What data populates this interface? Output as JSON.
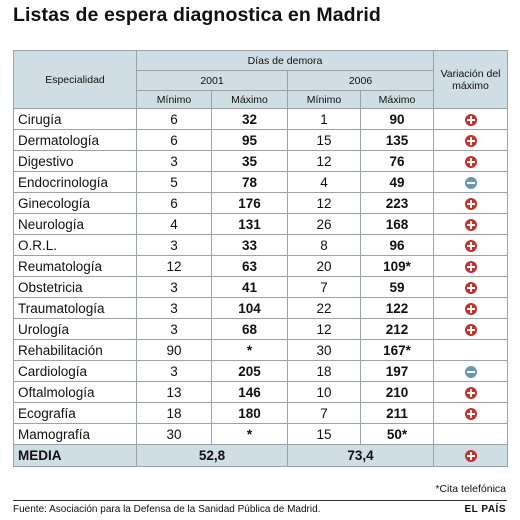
{
  "title": "Listas de espera diagnostica en Madrid",
  "chart_data": {
    "type": "table",
    "header": {
      "specialty": "Especialidad",
      "delay": "Días de demora",
      "year1": "2001",
      "year2": "2006",
      "min": "Mínimo",
      "max": "Máximo",
      "variation": "Variación del máximo"
    },
    "rows": [
      {
        "name": "Cirugía",
        "min2001": "6",
        "max2001": "32",
        "min2006": "1",
        "max2006": "90",
        "variation": "up"
      },
      {
        "name": "Dermatología",
        "min2001": "6",
        "max2001": "95",
        "min2006": "15",
        "max2006": "135",
        "variation": "up"
      },
      {
        "name": "Digestivo",
        "min2001": "3",
        "max2001": "35",
        "min2006": "12",
        "max2006": "76",
        "variation": "up"
      },
      {
        "name": "Endocrinología",
        "min2001": "5",
        "max2001": "78",
        "min2006": "4",
        "max2006": "49",
        "variation": "down"
      },
      {
        "name": "Ginecología",
        "min2001": "6",
        "max2001": "176",
        "min2006": "12",
        "max2006": "223",
        "variation": "up"
      },
      {
        "name": "Neurología",
        "min2001": "4",
        "max2001": "131",
        "min2006": "26",
        "max2006": "168",
        "variation": "up"
      },
      {
        "name": "O.R.L.",
        "min2001": "3",
        "max2001": "33",
        "min2006": "8",
        "max2006": "96",
        "variation": "up"
      },
      {
        "name": "Reumatología",
        "min2001": "12",
        "max2001": "63",
        "min2006": "20",
        "max2006": "109*",
        "variation": "up"
      },
      {
        "name": "Obstetricia",
        "min2001": "3",
        "max2001": "41",
        "min2006": "7",
        "max2006": "59",
        "variation": "up"
      },
      {
        "name": "Traumatología",
        "min2001": "3",
        "max2001": "104",
        "min2006": "22",
        "max2006": "122",
        "variation": "up"
      },
      {
        "name": "Urología",
        "min2001": "3",
        "max2001": "68",
        "min2006": "12",
        "max2006": "212",
        "variation": "up"
      },
      {
        "name": "Rehabilitación",
        "min2001": "90",
        "max2001": "*",
        "min2006": "30",
        "max2006": "167*",
        "variation": ""
      },
      {
        "name": "Cardiología",
        "min2001": "3",
        "max2001": "205",
        "min2006": "18",
        "max2006": "197",
        "variation": "down"
      },
      {
        "name": "Oftalmología",
        "min2001": "13",
        "max2001": "146",
        "min2006": "10",
        "max2006": "210",
        "variation": "up"
      },
      {
        "name": "Ecografía",
        "min2001": "18",
        "max2001": "180",
        "min2006": "7",
        "max2006": "211",
        "variation": "up"
      },
      {
        "name": "Mamografía",
        "min2001": "30",
        "max2001": "*",
        "min2006": "15",
        "max2006": "50*",
        "variation": ""
      }
    ],
    "total": {
      "name": "MEDIA",
      "value2001": "52,8",
      "value2006": "73,4",
      "variation": "up"
    },
    "colors": {
      "header_bg": "#cfdde4",
      "increase": "#c8302a",
      "decrease": "#6a98ad"
    }
  },
  "footnote": "*Cita telefónica",
  "source": "Fuente: Asociación para la Defensa de la Sanidad Pública de Madrid.",
  "brand": "EL PAÍS"
}
